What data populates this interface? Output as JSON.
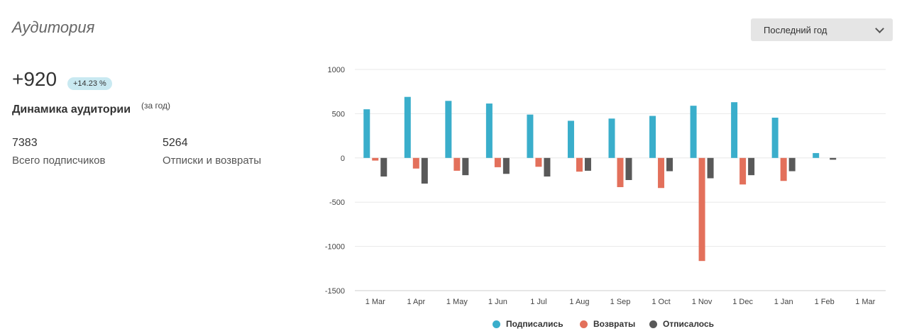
{
  "header": {
    "title": "Аудитория",
    "period_select": "Последний год"
  },
  "summary": {
    "growth": "+920",
    "growth_percent": "+14.23 %",
    "dynamics_label": "Динамика аудитории",
    "dynamics_period": "(за год)",
    "total_subscribers_value": "7383",
    "total_subscribers_label": "Всего подписчиков",
    "unsub_returns_value": "5264",
    "unsub_returns_label": "Отписки и возвраты"
  },
  "colors": {
    "subscribed": "#3aaecb",
    "returns": "#e3705b",
    "unsubscribed": "#595959"
  },
  "chart_data": {
    "type": "bar",
    "categories": [
      "1 Mar",
      "1 Apr",
      "1 May",
      "1 Jun",
      "1 Jul",
      "1 Aug",
      "1 Sep",
      "1 Oct",
      "1 Nov",
      "1 Dec",
      "1 Jan",
      "1 Feb",
      "1 Mar"
    ],
    "series": [
      {
        "name": "Подписались",
        "values": [
          550,
          690,
          645,
          615,
          490,
          420,
          445,
          475,
          590,
          630,
          455,
          55,
          0
        ]
      },
      {
        "name": "Возвраты",
        "values": [
          -30,
          -120,
          -145,
          -105,
          -100,
          -155,
          -330,
          -340,
          -1165,
          -300,
          -260,
          0,
          0
        ]
      },
      {
        "name": "Отписалось",
        "values": [
          -210,
          -290,
          -195,
          -180,
          -210,
          -145,
          -250,
          -150,
          -230,
          -195,
          -150,
          -20,
          0
        ]
      }
    ],
    "ylim": [
      -1500,
      1000
    ],
    "yticks": [
      1000,
      500,
      0,
      -500,
      -1000,
      -1500
    ],
    "grid": true,
    "legend": "bottom"
  }
}
